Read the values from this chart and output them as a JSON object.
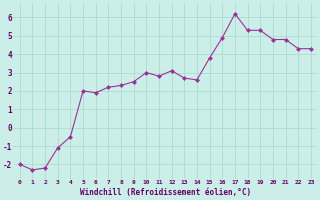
{
  "x": [
    0,
    1,
    2,
    3,
    4,
    5,
    6,
    7,
    8,
    9,
    10,
    11,
    12,
    13,
    14,
    15,
    16,
    17,
    18,
    19,
    20,
    21,
    22,
    23
  ],
  "y": [
    -2.0,
    -2.3,
    -2.2,
    -1.1,
    -0.5,
    2.0,
    1.9,
    2.2,
    2.3,
    2.5,
    3.0,
    2.8,
    3.1,
    2.7,
    2.6,
    3.8,
    4.9,
    6.2,
    5.3,
    5.3,
    4.8,
    4.8,
    4.3,
    4.3
  ],
  "line_color": "#993399",
  "marker": "D",
  "marker_size": 2.0,
  "bg_color": "#cceee8",
  "grid_color": "#aaddcc",
  "xlabel": "Windchill (Refroidissement éolien,°C)",
  "xlabel_color": "#660066",
  "tick_color": "#660066",
  "ylim": [
    -2.8,
    6.8
  ],
  "yticks": [
    -2,
    -1,
    0,
    1,
    2,
    3,
    4,
    5,
    6
  ],
  "xlim": [
    -0.5,
    23.5
  ],
  "xticks": [
    0,
    1,
    2,
    3,
    4,
    5,
    6,
    7,
    8,
    9,
    10,
    11,
    12,
    13,
    14,
    15,
    16,
    17,
    18,
    19,
    20,
    21,
    22,
    23
  ]
}
